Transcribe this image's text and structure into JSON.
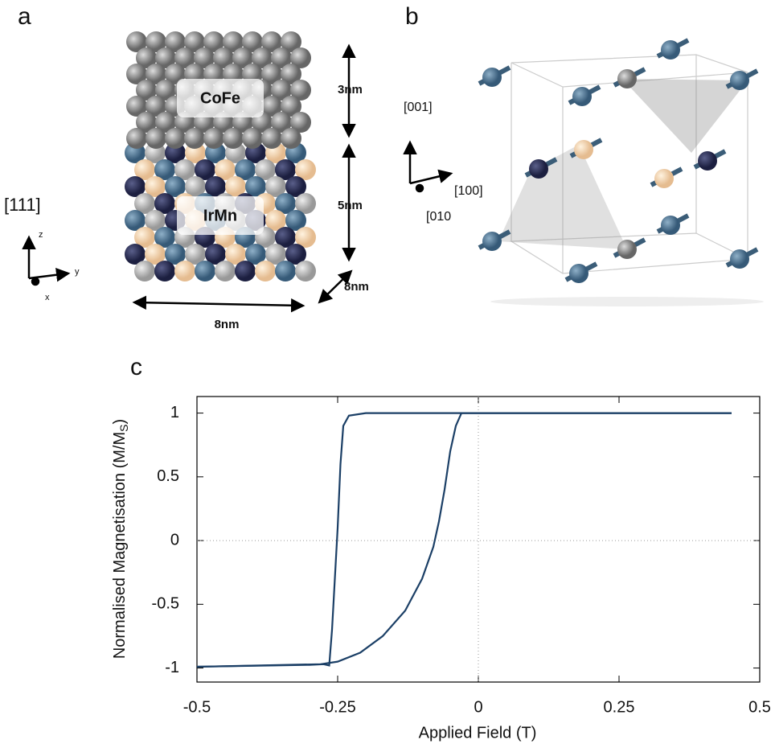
{
  "panel_a": {
    "letter": "a",
    "top_layer": "CoFe",
    "bottom_layer": "IrMn",
    "top_thickness": "3nm",
    "bottom_thickness": "5nm",
    "depth": "8nm",
    "width": "8nm",
    "axes_label": "[111]",
    "axis_z": "z",
    "axis_y": "y",
    "axis_x": "x"
  },
  "panel_b": {
    "letter": "b",
    "axis_001": "[001]",
    "axis_100": "[100]",
    "axis_010": "[010"
  },
  "chart_data": {
    "type": "line",
    "letter": "c",
    "x_label": "Applied Field (T)",
    "y_label": "Normalised Magnetisation (M/M",
    "y_label_sub": "S",
    "y_label_end": ")",
    "color": "#1b3f66",
    "series": [
      {
        "x": [
          0.45,
          -0.03,
          -0.04,
          -0.05,
          -0.06,
          -0.07,
          -0.08,
          -0.1,
          -0.13,
          -0.17,
          -0.21,
          -0.25,
          -0.28,
          -0.5
        ],
        "values": [
          1,
          1,
          0.9,
          0.7,
          0.4,
          0.15,
          -0.05,
          -0.3,
          -0.55,
          -0.75,
          -0.88,
          -0.95,
          -0.97,
          -0.99
        ]
      },
      {
        "x": [
          -0.5,
          -0.3,
          -0.275,
          -0.265,
          -0.26,
          -0.255,
          -0.25,
          -0.245,
          -0.24,
          -0.23,
          -0.2,
          -0.03,
          0.45
        ],
        "values": [
          -0.99,
          -0.975,
          -0.97,
          -0.98,
          -0.7,
          -0.3,
          0.1,
          0.6,
          0.9,
          0.98,
          1,
          1,
          1
        ]
      }
    ],
    "xlim": [
      -0.5,
      0.5
    ],
    "xticks": [
      -0.5,
      -0.25,
      0,
      0.25,
      0.5
    ],
    "ylim": [
      -1.11,
      1.13
    ],
    "yticks": [
      -1,
      -0.5,
      0,
      0.5,
      1
    ],
    "zero_lines": true
  }
}
